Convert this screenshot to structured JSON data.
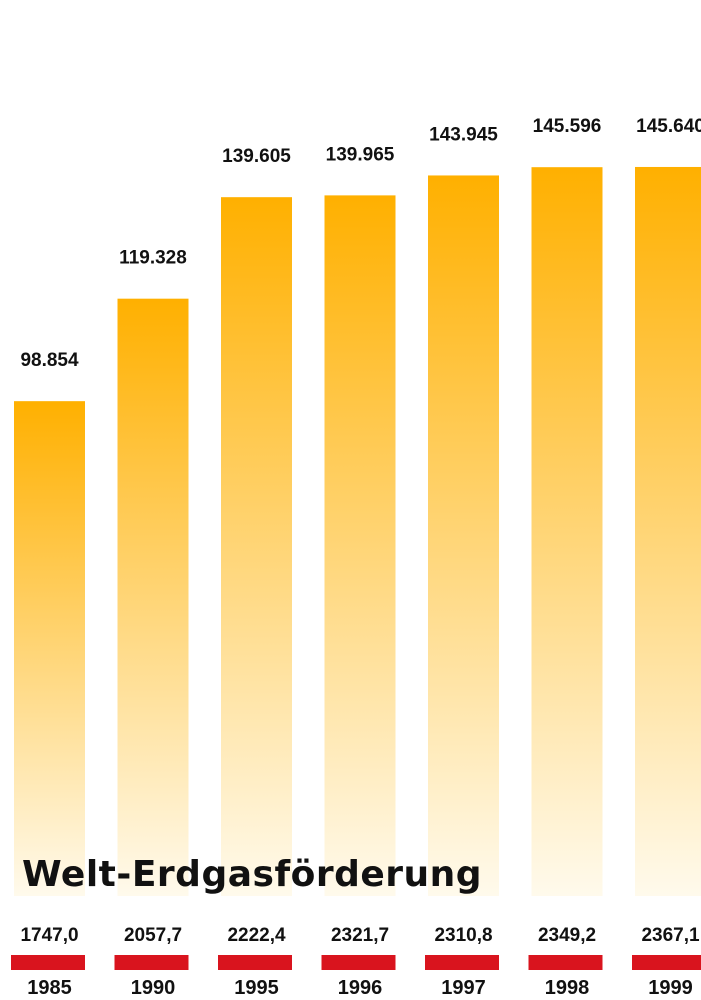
{
  "chart_data": {
    "type": "bar",
    "title": "Welt-Erdgasförderung",
    "categories": [
      "1985",
      "1990",
      "1995",
      "1996",
      "1997",
      "1998",
      "1999"
    ],
    "values": [
      98854,
      119328,
      139605,
      139965,
      143945,
      145596,
      145640
    ],
    "value_labels": [
      "98.854",
      "119.328",
      "139.605",
      "139.965",
      "143.945",
      "145.596",
      "145.640"
    ],
    "secondary_labels": [
      "1747,0",
      "2057,7",
      "2222,4",
      "2321,7",
      "2310,8",
      "2349,2",
      "2367,1"
    ],
    "ylim": [
      0,
      175000
    ],
    "grid": false,
    "legend": "none",
    "colors": {
      "bar_top": "#FFB000",
      "bar_bottom": "#FFFAEC",
      "marker": "#D9141E"
    }
  }
}
